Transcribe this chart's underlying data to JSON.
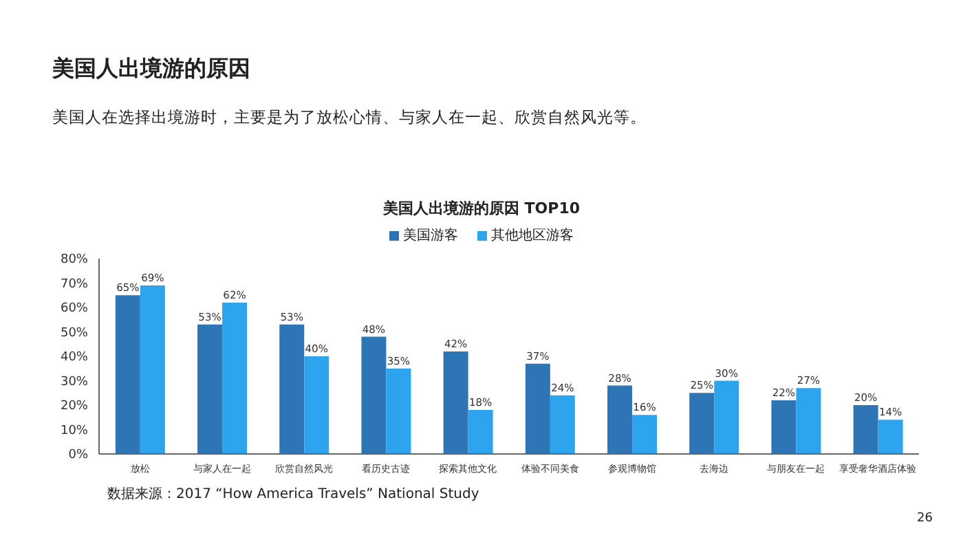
{
  "chart_data": {
    "type": "bar",
    "title": "美国人出境游的原因 TOP10",
    "subtitle": "美国人在选择出境游时，主要是为了放松心情、与家人在一起、欣赏自然风光等。",
    "annotations": [
      "美国人出境游的原因",
      "数据来源：2017 “How America Travels” National Study",
      "26"
    ],
    "categories": [
      "放松",
      "与家人在一起",
      "欣赏自然风光",
      "看历史古迹",
      "探索其他文化",
      "体验不同美食",
      "参观博物馆",
      "去海边",
      "与朋友在一起",
      "享受奢华酒店体验"
    ],
    "series": [
      {
        "name": "美国游客",
        "color": "#2e75b6",
        "values": [
          65,
          53,
          53,
          48,
          42,
          37,
          28,
          25,
          22,
          20
        ],
        "value_labels": [
          "65%",
          "53%",
          "53%",
          "48%",
          "42%",
          "37%",
          "28%",
          "25%",
          "22%",
          "20%"
        ]
      },
      {
        "name": "其他地区游客",
        "color": "#2fa4ee",
        "values": [
          69,
          62,
          40,
          35,
          18,
          24,
          16,
          30,
          27,
          14
        ],
        "value_labels": [
          "69%",
          "62%",
          "40%",
          "35%",
          "18%",
          "24%",
          "16%",
          "30%",
          "27%",
          "14%"
        ]
      }
    ],
    "ylim": [
      0,
      80
    ],
    "yticks": [
      {
        "value": 0,
        "label": "0%"
      },
      {
        "value": 10,
        "label": "10%"
      },
      {
        "value": 20,
        "label": "20%"
      },
      {
        "value": 30,
        "label": "30%"
      },
      {
        "value": 40,
        "label": "40%"
      },
      {
        "value": 50,
        "label": "50%"
      },
      {
        "value": 60,
        "label": "60%"
      },
      {
        "value": 70,
        "label": "70%"
      },
      {
        "value": 80,
        "label": "80%"
      }
    ],
    "grid": false,
    "legend": "top"
  }
}
